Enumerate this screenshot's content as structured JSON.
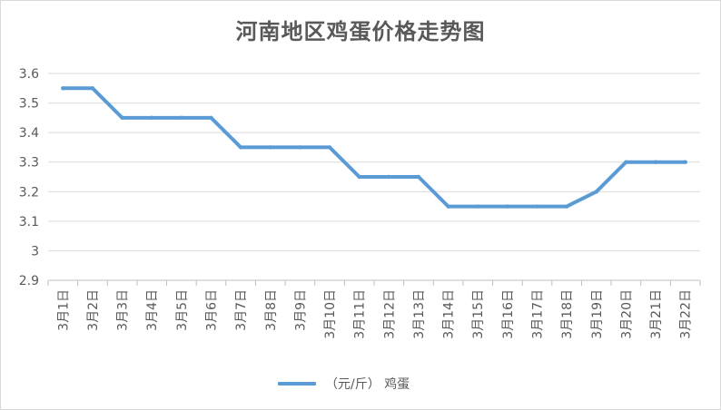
{
  "chart_data": {
    "type": "line",
    "title": "河南地区鸡蛋价格走势图",
    "categories": [
      "3月1日",
      "3月2日",
      "3月3日",
      "3月4日",
      "3月5日",
      "3月6日",
      "3月7日",
      "3月8日",
      "3月9日",
      "3月10日",
      "3月11日",
      "3月12日",
      "3月13日",
      "3月14日",
      "3月15日",
      "3月16日",
      "3月17日",
      "3月18日",
      "3月19日",
      "3月20日",
      "3月21日",
      "3月22日"
    ],
    "series": [
      {
        "name": "（元/斤） 鸡蛋",
        "color": "#5b9bd5",
        "values": [
          3.55,
          3.55,
          3.45,
          3.45,
          3.45,
          3.45,
          3.35,
          3.35,
          3.35,
          3.35,
          3.25,
          3.25,
          3.25,
          3.15,
          3.15,
          3.15,
          3.15,
          3.15,
          3.2,
          3.3,
          3.3,
          3.3
        ]
      }
    ],
    "yticks": [
      "3.6",
      "3.5",
      "3.4",
      "3.3",
      "3.2",
      "3.1",
      "3",
      "2.9"
    ],
    "ylim": [
      2.9,
      3.6
    ],
    "grid": true,
    "legend_position": "bottom"
  }
}
